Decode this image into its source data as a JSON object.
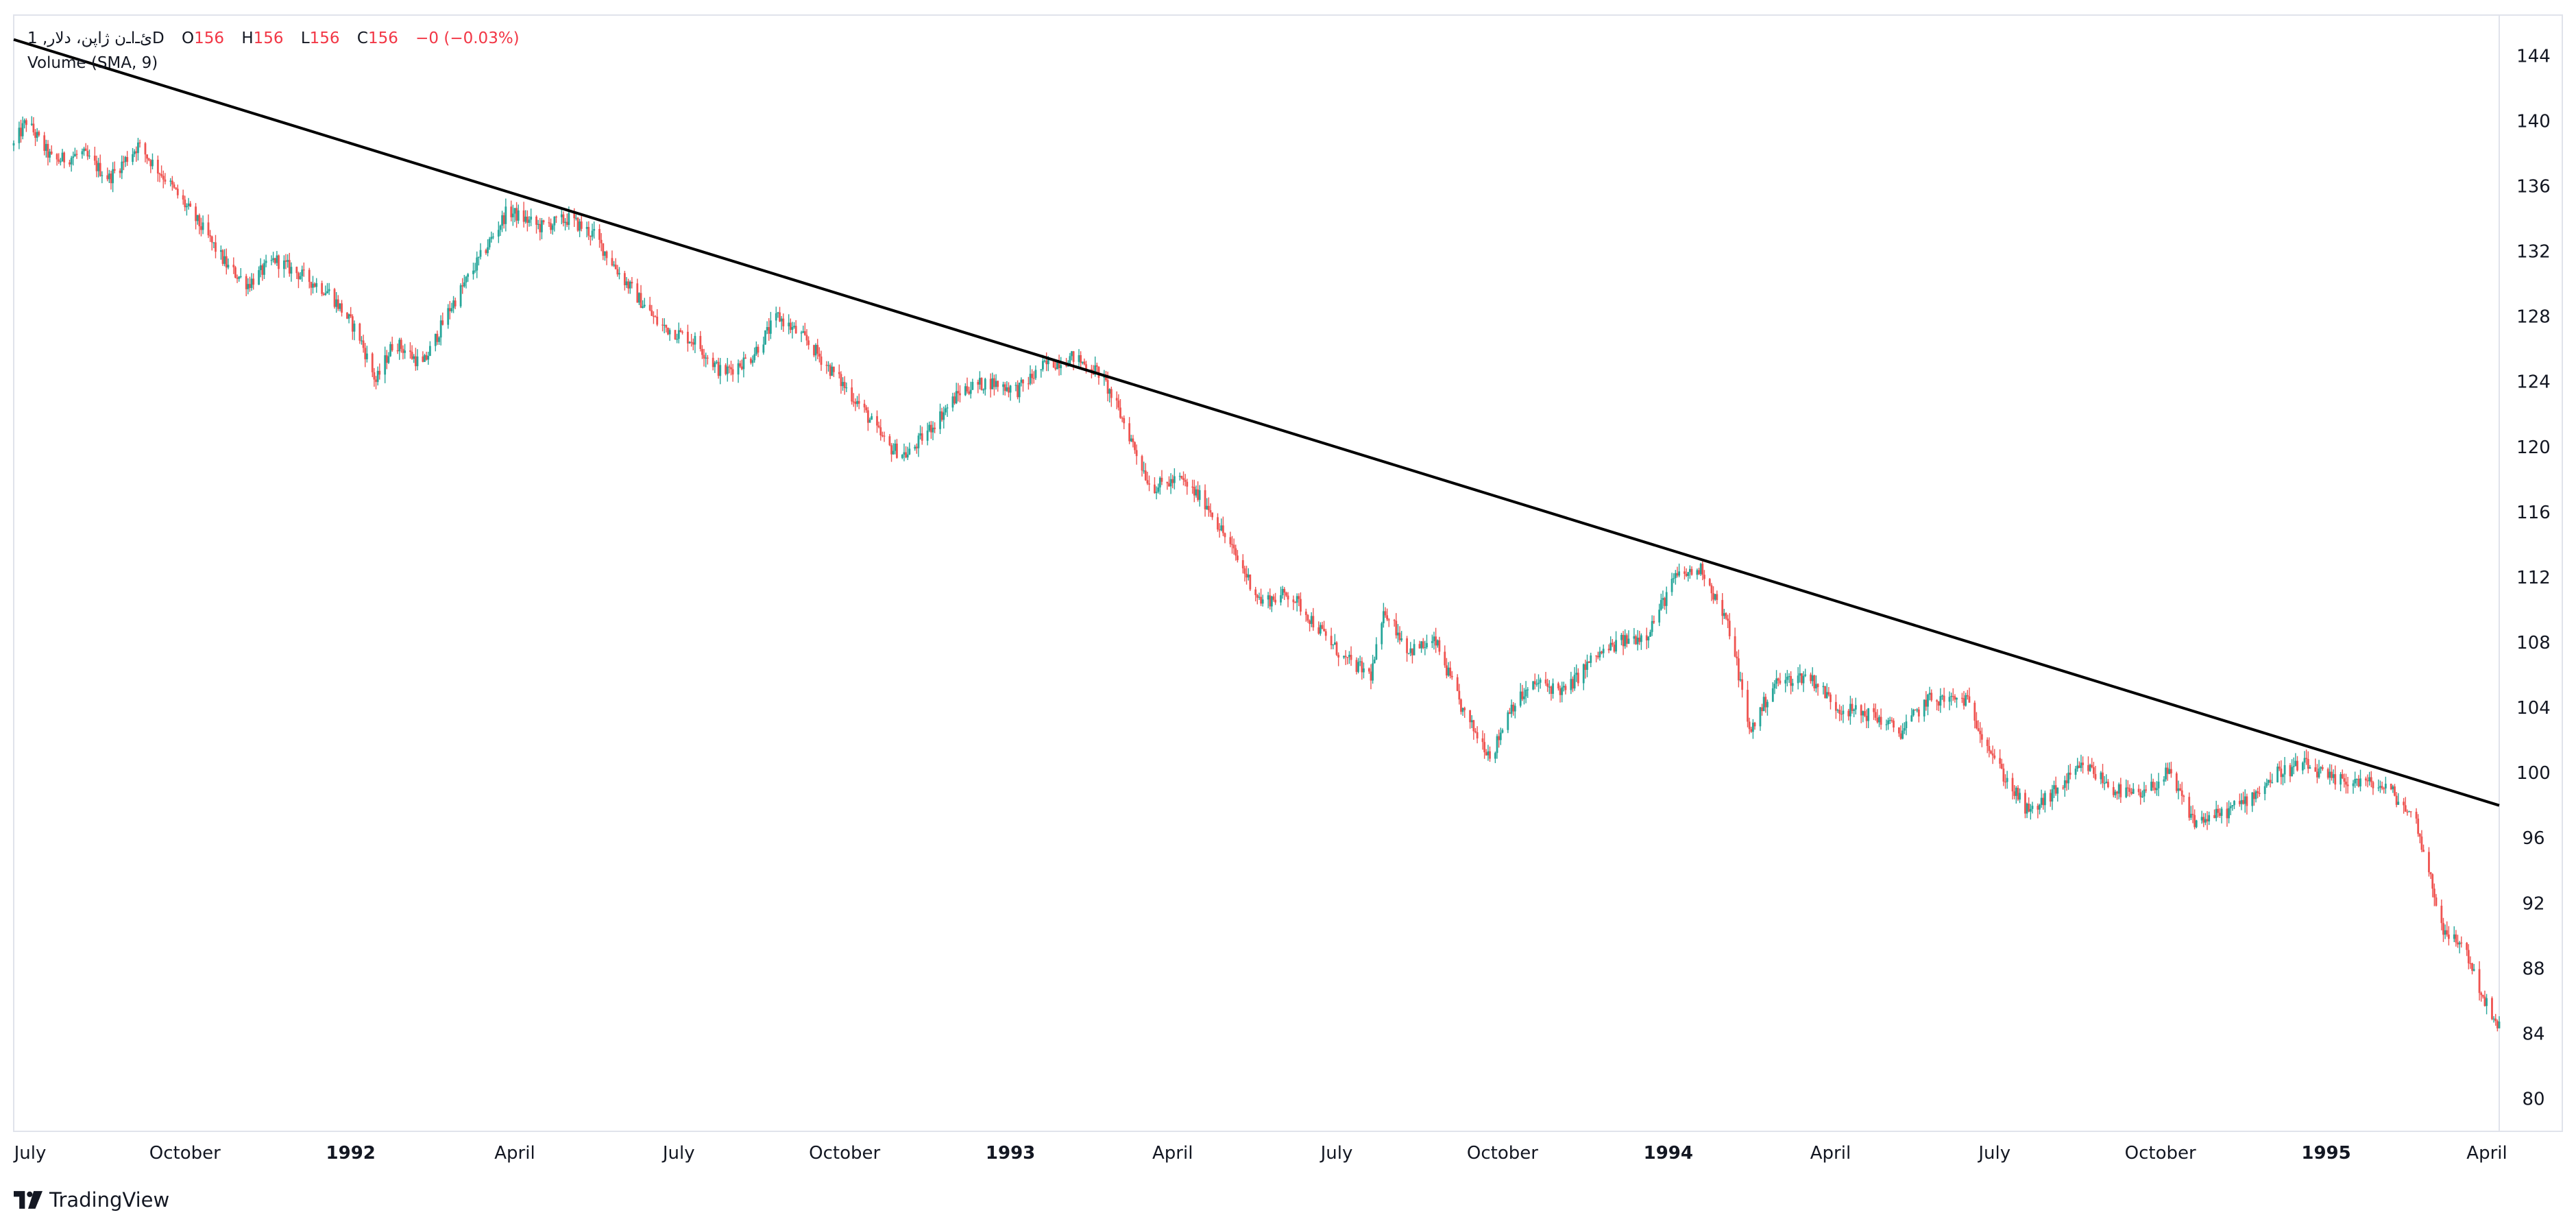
{
  "legend": {
    "symbol": "1 ,ئ‌ـ‌ا‌ـ‌ن ژاپن، دلارD",
    "open_label": "O",
    "open_value": "156",
    "high_label": "H",
    "high_value": "156",
    "low_label": "L",
    "low_value": "156",
    "close_label": "C",
    "close_value": "156",
    "change": "−0 (−0.03%)",
    "indicator": "Volume (SMA, 9)"
  },
  "attribution": "TradingView",
  "colors": {
    "up": "#26a69a",
    "down": "#ef5350",
    "trendline": "#000000",
    "grid": "#e0e3eb",
    "text": "#131722"
  },
  "chart_data": {
    "type": "candlestick",
    "x_axis": {
      "labels": [
        "July",
        "October",
        "1992",
        "April",
        "July",
        "October",
        "1993",
        "April",
        "July",
        "October",
        "1994",
        "April",
        "July",
        "October",
        "1995",
        "April"
      ],
      "bold": [
        false,
        false,
        true,
        false,
        false,
        false,
        true,
        false,
        false,
        false,
        true,
        false,
        false,
        false,
        true,
        false
      ],
      "dates": [
        "1991-07-01",
        "1991-10-01",
        "1992-01-01",
        "1992-04-01",
        "1992-07-01",
        "1992-10-01",
        "1993-01-01",
        "1993-04-01",
        "1993-07-01",
        "1993-10-01",
        "1994-01-01",
        "1994-04-01",
        "1994-07-01",
        "1994-10-01",
        "1995-01-01",
        "1995-04-01"
      ]
    },
    "y_axis": {
      "ticks": [
        80,
        84,
        88,
        92,
        96,
        100,
        104,
        108,
        112,
        116,
        120,
        124,
        128,
        132,
        136,
        140,
        144
      ],
      "range": [
        78,
        146.5
      ],
      "side": "right"
    },
    "x_range": [
      "1991-06-28",
      "1995-04-07"
    ],
    "price_path": [
      [
        "1991-06-28",
        138.5
      ],
      [
        "1991-07-05",
        140.0
      ],
      [
        "1991-07-20",
        137.5
      ],
      [
        "1991-08-05",
        138.0
      ],
      [
        "1991-08-20",
        136.5
      ],
      [
        "1991-09-05",
        138.5
      ],
      [
        "1991-09-20",
        136.5
      ],
      [
        "1991-10-10",
        133.5
      ],
      [
        "1991-10-25",
        131.0
      ],
      [
        "1991-11-05",
        130.0
      ],
      [
        "1991-11-20",
        131.5
      ],
      [
        "1991-12-05",
        130.5
      ],
      [
        "1991-12-20",
        129.5
      ],
      [
        "1992-01-05",
        127.0
      ],
      [
        "1992-01-15",
        124.0
      ],
      [
        "1992-01-25",
        126.5
      ],
      [
        "1992-02-10",
        125.0
      ],
      [
        "1992-02-25",
        128.5
      ],
      [
        "1992-03-15",
        132.0
      ],
      [
        "1992-03-28",
        134.5
      ],
      [
        "1992-04-15",
        133.5
      ],
      [
        "1992-05-01",
        134.0
      ],
      [
        "1992-05-15",
        133.0
      ],
      [
        "1992-05-30",
        130.5
      ],
      [
        "1992-06-20",
        127.5
      ],
      [
        "1992-07-10",
        126.5
      ],
      [
        "1992-07-25",
        124.5
      ],
      [
        "1992-08-10",
        125.5
      ],
      [
        "1992-08-25",
        128.0
      ],
      [
        "1992-09-10",
        126.5
      ],
      [
        "1992-09-25",
        124.5
      ],
      [
        "1992-10-10",
        122.5
      ],
      [
        "1992-10-25",
        120.0
      ],
      [
        "1992-11-05",
        119.5
      ],
      [
        "1992-11-20",
        121.5
      ],
      [
        "1992-12-05",
        123.5
      ],
      [
        "1992-12-20",
        124.0
      ],
      [
        "1993-01-05",
        123.5
      ],
      [
        "1993-01-20",
        125.0
      ],
      [
        "1993-02-05",
        125.5
      ],
      [
        "1993-02-20",
        124.5
      ],
      [
        "1993-03-05",
        121.5
      ],
      [
        "1993-03-20",
        117.5
      ],
      [
        "1993-04-05",
        118.0
      ],
      [
        "1993-04-20",
        116.5
      ],
      [
        "1993-05-05",
        113.5
      ],
      [
        "1993-05-20",
        110.5
      ],
      [
        "1993-06-05",
        111.0
      ],
      [
        "1993-06-20",
        109.0
      ],
      [
        "1993-07-05",
        107.0
      ],
      [
        "1993-07-20",
        106.0
      ],
      [
        "1993-07-28",
        110.0
      ],
      [
        "1993-08-10",
        107.5
      ],
      [
        "1993-08-25",
        108.0
      ],
      [
        "1993-09-10",
        103.5
      ],
      [
        "1993-09-25",
        101.0
      ],
      [
        "1993-10-05",
        104.0
      ],
      [
        "1993-10-20",
        105.5
      ],
      [
        "1993-11-05",
        105.0
      ],
      [
        "1993-11-20",
        107.0
      ],
      [
        "1993-12-05",
        108.0
      ],
      [
        "1993-12-20",
        108.5
      ],
      [
        "1994-01-05",
        112.0
      ],
      [
        "1994-01-20",
        112.5
      ],
      [
        "1994-02-05",
        108.5
      ],
      [
        "1994-02-15",
        102.5
      ],
      [
        "1994-03-01",
        105.5
      ],
      [
        "1994-03-20",
        106.0
      ],
      [
        "1994-04-05",
        104.0
      ],
      [
        "1994-04-25",
        103.5
      ],
      [
        "1994-05-10",
        102.5
      ],
      [
        "1994-05-25",
        104.5
      ],
      [
        "1994-06-15",
        104.5
      ],
      [
        "1994-07-05",
        100.0
      ],
      [
        "1994-07-20",
        97.5
      ],
      [
        "1994-08-05",
        99.0
      ],
      [
        "1994-08-20",
        100.5
      ],
      [
        "1994-09-05",
        99.0
      ],
      [
        "1994-09-20",
        98.5
      ],
      [
        "1994-10-05",
        100.0
      ],
      [
        "1994-10-20",
        97.0
      ],
      [
        "1994-11-05",
        97.5
      ],
      [
        "1994-11-20",
        98.5
      ],
      [
        "1994-12-05",
        100.0
      ],
      [
        "1994-12-20",
        100.5
      ],
      [
        "1995-01-05",
        99.5
      ],
      [
        "1995-01-20",
        99.5
      ],
      [
        "1995-02-05",
        99.0
      ],
      [
        "1995-02-20",
        97.0
      ],
      [
        "1995-03-01",
        93.0
      ],
      [
        "1995-03-08",
        90.0
      ],
      [
        "1995-03-18",
        89.5
      ],
      [
        "1995-03-28",
        86.5
      ],
      [
        "1995-04-05",
        84.5
      ]
    ],
    "last_close": 84.5,
    "trendline": {
      "start": [
        "1991-06-28",
        145.0
      ],
      "end": [
        "1995-04-07",
        98.0
      ]
    }
  }
}
